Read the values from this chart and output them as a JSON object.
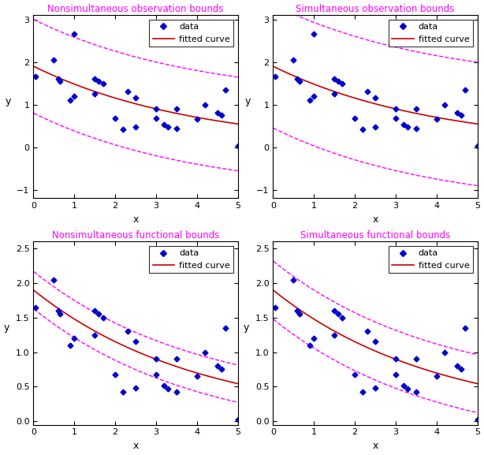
{
  "titles": [
    "Nonsimultaneous observation bounds",
    "Simultaneous observation bounds",
    "Nonsimultaneous functional bounds",
    "Simultaneous functional bounds"
  ],
  "xlabel": "x",
  "ylabel": "y",
  "data_x": [
    0.05,
    0.5,
    0.6,
    0.65,
    0.9,
    1.0,
    1.0,
    1.5,
    1.5,
    1.6,
    1.7,
    2.0,
    2.2,
    2.3,
    2.5,
    2.5,
    3.0,
    3.0,
    3.2,
    3.3,
    3.5,
    3.5,
    4.0,
    4.2,
    4.5,
    4.6,
    4.7,
    5.0
  ],
  "data_y": [
    1.65,
    2.05,
    1.6,
    1.55,
    1.1,
    2.65,
    1.2,
    1.6,
    1.25,
    1.55,
    1.5,
    0.68,
    0.42,
    1.3,
    1.15,
    0.48,
    0.9,
    0.68,
    0.52,
    0.47,
    0.43,
    0.9,
    0.65,
    1.0,
    0.8,
    0.75,
    1.35,
    0.02
  ],
  "fit_a": 1.9,
  "fit_b": -0.25,
  "title_color": "#ff00ff",
  "data_color": "#0000cc",
  "fit_color_red": "#cc0000",
  "fit_color_black": "#000000",
  "bound_color": "#ff00ff",
  "obs_ylim": [
    -1.2,
    3.1
  ],
  "func_ylim": [
    -0.05,
    2.6
  ],
  "obs_yticks": [
    -1,
    0,
    1,
    2,
    3
  ],
  "func_yticks": [
    0,
    0.5,
    1.0,
    1.5,
    2.0,
    2.5
  ],
  "xlim": [
    0,
    5
  ],
  "xticks": [
    0,
    1,
    2,
    3,
    4,
    5
  ],
  "nonsim_obs_sigma": 1.1,
  "sim_obs_sigma": 1.45,
  "nonsim_func_sigma": 0.27,
  "sim_func_sigma": 0.42,
  "fit_colors": [
    "#cc0000",
    "#cc0000",
    "#cc0000",
    "#cc0000"
  ],
  "legend_fit_colors": [
    "#000000",
    "#cc0000",
    "#cc0000",
    "#000000"
  ]
}
